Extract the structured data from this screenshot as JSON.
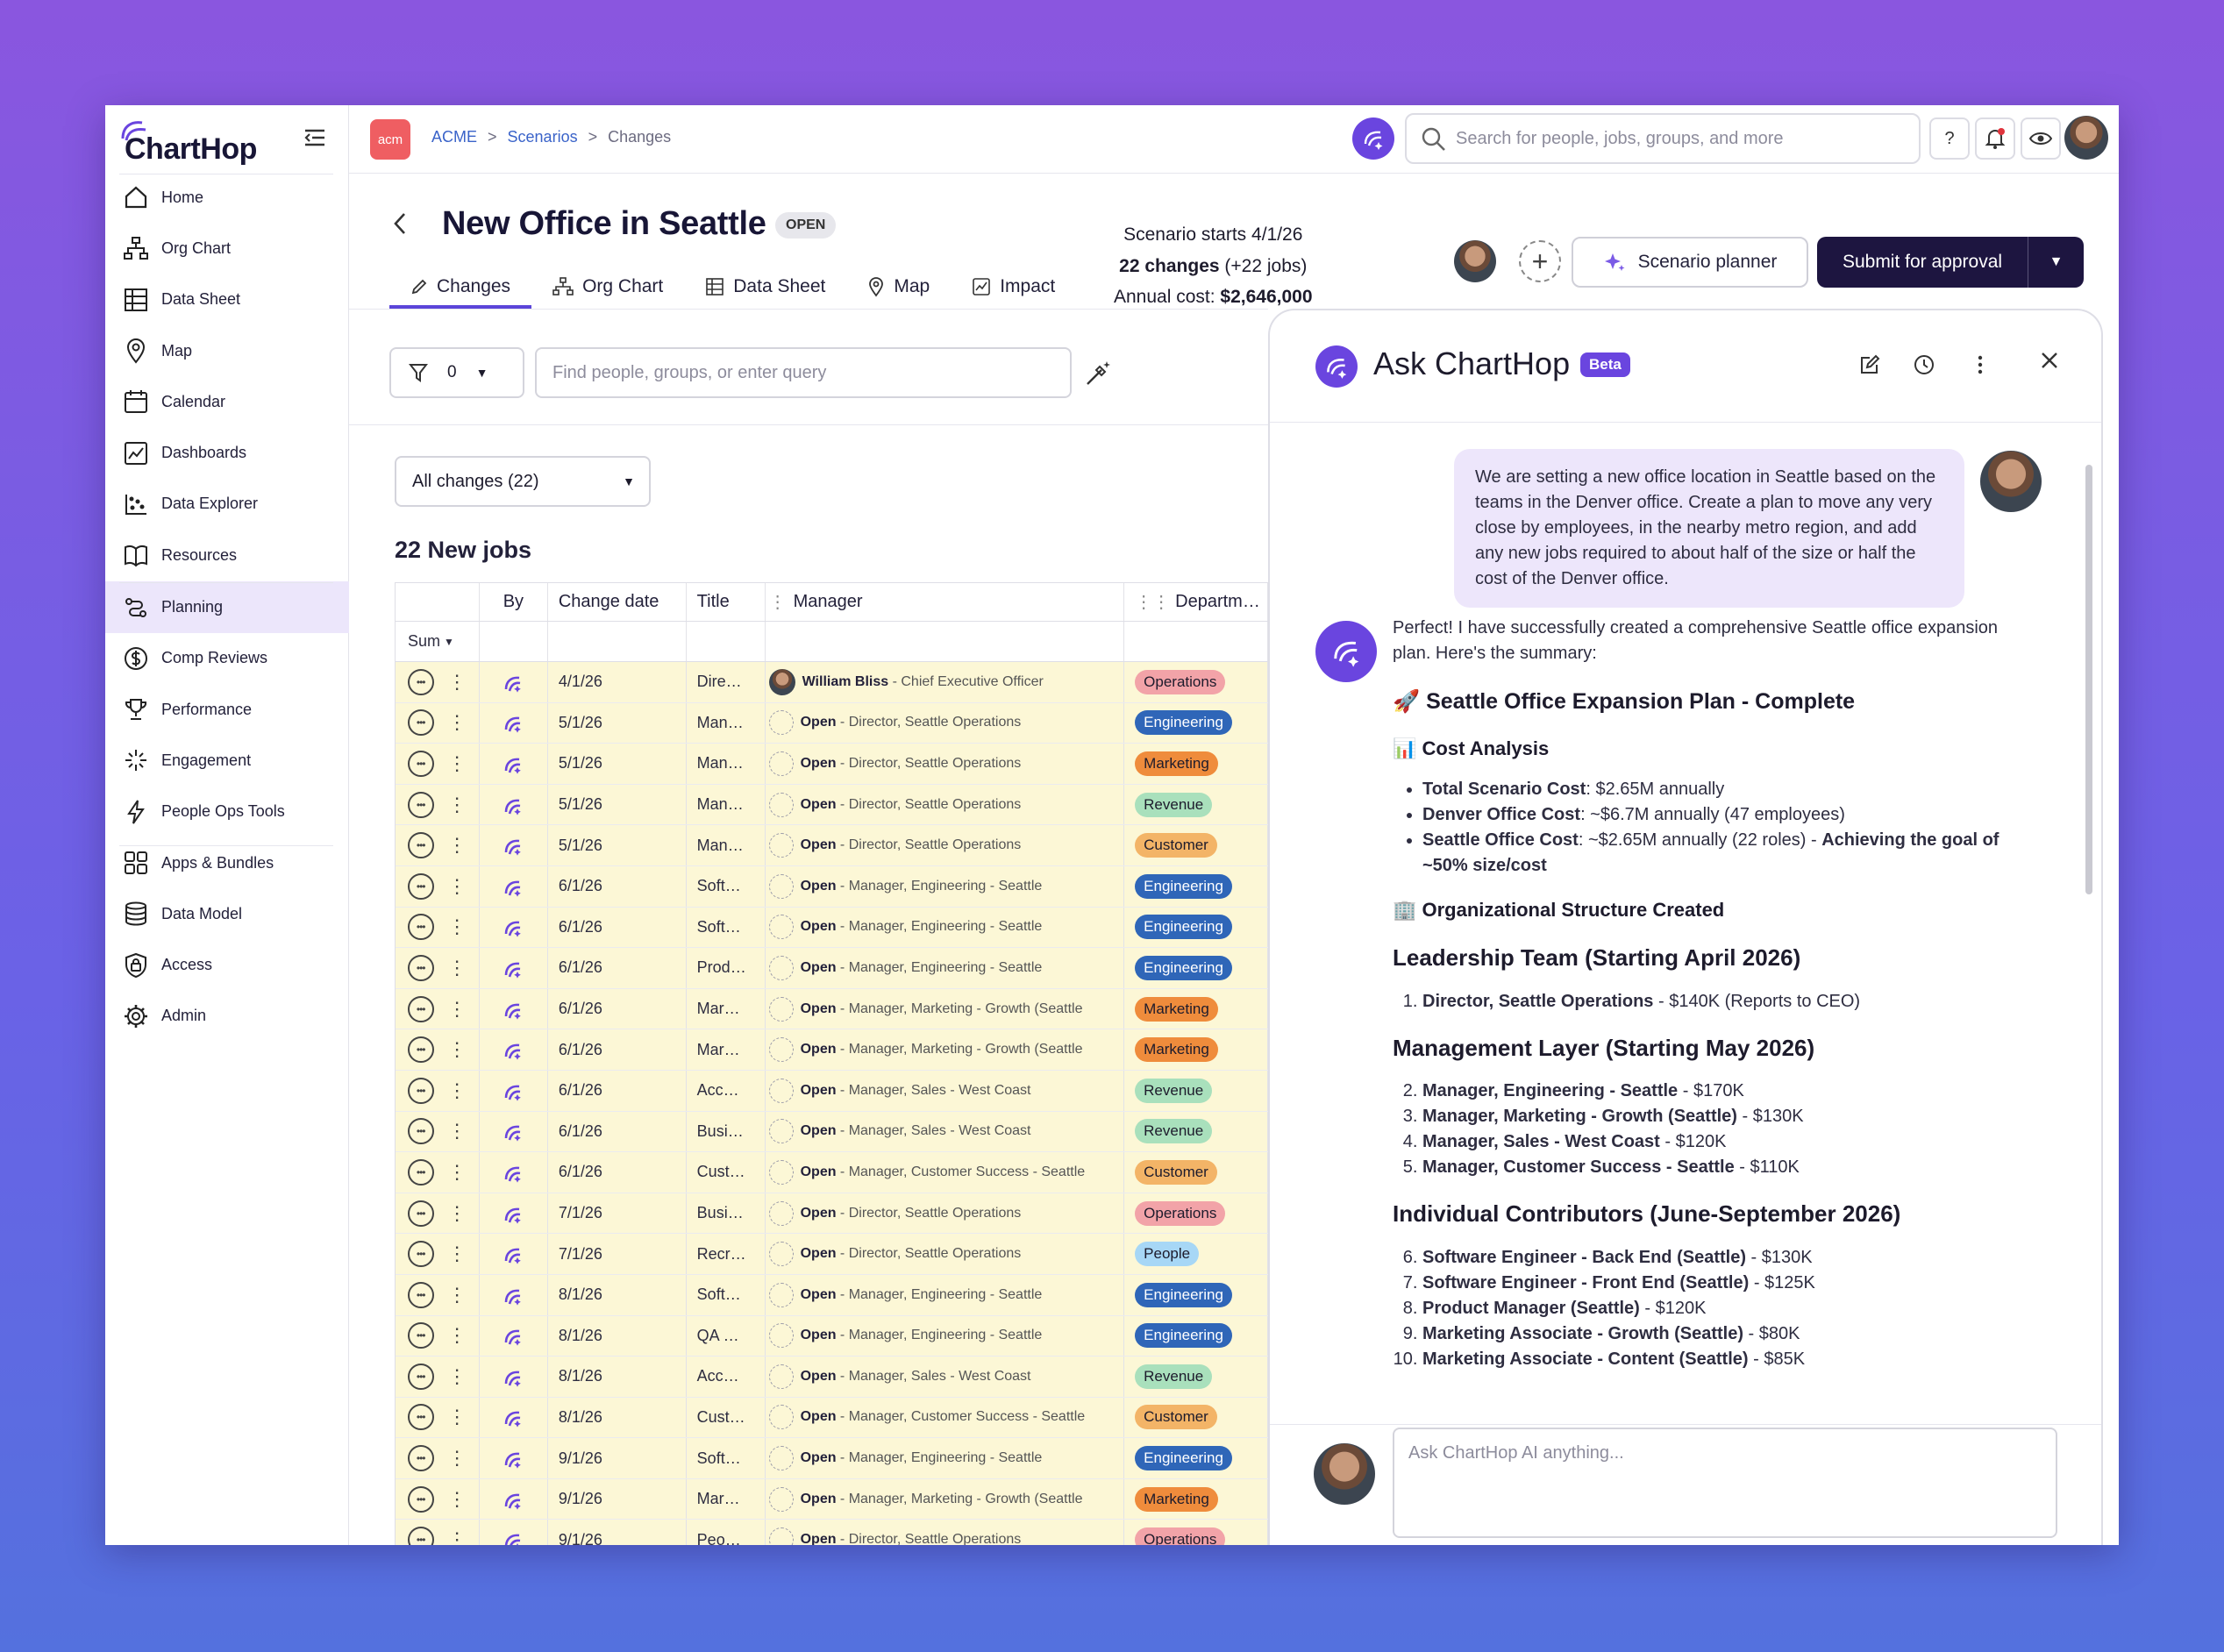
{
  "app": {
    "logo_text": "ChartHop"
  },
  "sidebar": {
    "items": [
      {
        "label": "Home",
        "icon": "home-icon"
      },
      {
        "label": "Org Chart",
        "icon": "org-chart-icon"
      },
      {
        "label": "Data Sheet",
        "icon": "data-sheet-icon"
      },
      {
        "label": "Map",
        "icon": "map-pin-icon"
      },
      {
        "label": "Calendar",
        "icon": "calendar-icon"
      },
      {
        "label": "Dashboards",
        "icon": "dashboard-icon"
      },
      {
        "label": "Data Explorer",
        "icon": "data-explorer-icon"
      },
      {
        "label": "Resources",
        "icon": "book-icon"
      },
      {
        "label": "Planning",
        "icon": "planning-icon",
        "active": true
      },
      {
        "label": "Comp Reviews",
        "icon": "dollar-icon"
      },
      {
        "label": "Performance",
        "icon": "trophy-icon"
      },
      {
        "label": "Engagement",
        "icon": "sparkle-icon"
      },
      {
        "label": "People Ops Tools",
        "icon": "lightning-icon"
      },
      {
        "label": "Apps & Bundles",
        "icon": "apps-icon"
      },
      {
        "label": "Data Model",
        "icon": "database-icon"
      },
      {
        "label": "Access",
        "icon": "lock-shield-icon"
      },
      {
        "label": "Admin",
        "icon": "gear-icon"
      }
    ]
  },
  "topbar": {
    "org_badge": "acm",
    "breadcrumb": [
      "ACME",
      "Scenarios",
      "Changes"
    ],
    "search_placeholder": "Search for people, jobs, groups, and more",
    "help_label": "?"
  },
  "page": {
    "title": "New Office in Seattle",
    "status": "OPEN",
    "tabs": [
      "Changes",
      "Org Chart",
      "Data Sheet",
      "Map",
      "Impact"
    ],
    "scenario_start": "Scenario starts 4/1/26",
    "changes_count": "22 changes",
    "changes_detail": "(+22 jobs)",
    "annual_cost_label": "Annual cost:",
    "annual_cost_value": "$2,646,000",
    "scenario_planner_label": "Scenario planner",
    "submit_label": "Submit for approval",
    "filter_count": "0",
    "query_placeholder": "Find people, groups, or enter query",
    "changes_filter": "All changes (22)",
    "section_title": "22 New jobs"
  },
  "table": {
    "headers": [
      "By",
      "Change date",
      "Title",
      "Manager",
      "Departm…"
    ],
    "sum_label": "Sum",
    "rows": [
      {
        "date": "4/1/26",
        "title": "Dire…",
        "mgr_name": "William Bliss",
        "mgr_role": " - Chief Executive Officer",
        "dept": "Operations",
        "photo": true
      },
      {
        "date": "5/1/26",
        "title": "Man…",
        "mgr_name": "Open",
        "mgr_role": " - Director, Seattle Operations",
        "dept": "Engineering"
      },
      {
        "date": "5/1/26",
        "title": "Man…",
        "mgr_name": "Open",
        "mgr_role": " - Director, Seattle Operations",
        "dept": "Marketing"
      },
      {
        "date": "5/1/26",
        "title": "Man…",
        "mgr_name": "Open",
        "mgr_role": " - Director, Seattle Operations",
        "dept": "Revenue"
      },
      {
        "date": "5/1/26",
        "title": "Man…",
        "mgr_name": "Open",
        "mgr_role": " - Director, Seattle Operations",
        "dept": "Customer"
      },
      {
        "date": "6/1/26",
        "title": "Soft…",
        "mgr_name": "Open",
        "mgr_role": " - Manager, Engineering - Seattle",
        "dept": "Engineering"
      },
      {
        "date": "6/1/26",
        "title": "Soft…",
        "mgr_name": "Open",
        "mgr_role": " - Manager, Engineering - Seattle",
        "dept": "Engineering"
      },
      {
        "date": "6/1/26",
        "title": "Prod…",
        "mgr_name": "Open",
        "mgr_role": " - Manager, Engineering - Seattle",
        "dept": "Engineering"
      },
      {
        "date": "6/1/26",
        "title": "Mar…",
        "mgr_name": "Open",
        "mgr_role": " - Manager, Marketing - Growth (Seattle",
        "dept": "Marketing"
      },
      {
        "date": "6/1/26",
        "title": "Mar…",
        "mgr_name": "Open",
        "mgr_role": " - Manager, Marketing - Growth (Seattle",
        "dept": "Marketing"
      },
      {
        "date": "6/1/26",
        "title": "Acc…",
        "mgr_name": "Open",
        "mgr_role": " - Manager, Sales - West Coast",
        "dept": "Revenue"
      },
      {
        "date": "6/1/26",
        "title": "Busi…",
        "mgr_name": "Open",
        "mgr_role": " - Manager, Sales - West Coast",
        "dept": "Revenue"
      },
      {
        "date": "6/1/26",
        "title": "Cust…",
        "mgr_name": "Open",
        "mgr_role": " - Manager, Customer Success - Seattle",
        "dept": "Customer"
      },
      {
        "date": "7/1/26",
        "title": "Busi…",
        "mgr_name": "Open",
        "mgr_role": " - Director, Seattle Operations",
        "dept": "Operations"
      },
      {
        "date": "7/1/26",
        "title": "Recr…",
        "mgr_name": "Open",
        "mgr_role": " - Director, Seattle Operations",
        "dept": "People"
      },
      {
        "date": "8/1/26",
        "title": "Soft…",
        "mgr_name": "Open",
        "mgr_role": " - Manager, Engineering - Seattle",
        "dept": "Engineering"
      },
      {
        "date": "8/1/26",
        "title": "QA …",
        "mgr_name": "Open",
        "mgr_role": " - Manager, Engineering - Seattle",
        "dept": "Engineering"
      },
      {
        "date": "8/1/26",
        "title": "Acc…",
        "mgr_name": "Open",
        "mgr_role": " - Manager, Sales - West Coast",
        "dept": "Revenue"
      },
      {
        "date": "8/1/26",
        "title": "Cust…",
        "mgr_name": "Open",
        "mgr_role": " - Manager, Customer Success - Seattle",
        "dept": "Customer"
      },
      {
        "date": "9/1/26",
        "title": "Soft…",
        "mgr_name": "Open",
        "mgr_role": " - Manager, Engineering - Seattle",
        "dept": "Engineering"
      },
      {
        "date": "9/1/26",
        "title": "Mar…",
        "mgr_name": "Open",
        "mgr_role": " - Manager, Marketing - Growth (Seattle",
        "dept": "Marketing"
      },
      {
        "date": "9/1/26",
        "title": "Peo…",
        "mgr_name": "Open",
        "mgr_role": " - Director, Seattle Operations",
        "dept": "Operations"
      }
    ]
  },
  "dept_colors": {
    "Operations": "#f2a3a8",
    "Engineering": "#2f66b8",
    "Marketing": "#ef8c3c",
    "Revenue": "#a9e0bc",
    "Customer": "#f3b467",
    "People": "#a7d7f6"
  },
  "assistant": {
    "title": "Ask ChartHop",
    "beta": "Beta",
    "user_message": "We are setting a new office location in Seattle based on the teams in the Denver office. Create a plan to move any very close by employees, in the nearby metro region, and add any new jobs required to about half of the size or half the cost of the Denver office.",
    "intro": "Perfect! I have successfully created a comprehensive Seattle office expansion plan. Here's the summary:",
    "plan_title": "🚀 Seattle Office Expansion Plan - Complete",
    "cost_title": "📊 Cost Analysis",
    "cost_items": [
      {
        "b": "Total Scenario Cost",
        "t": ": $2.65M annually",
        "b2": ""
      },
      {
        "b": "Denver Office Cost",
        "t": ": ~$6.7M annually (47 employees)",
        "b2": ""
      },
      {
        "b": "Seattle Office Cost",
        "t": ": ~$2.65M annually (22 roles) - ",
        "b2": "Achieving the goal of ~50% size/cost"
      }
    ],
    "org_title": "🏢 Organizational Structure Created",
    "leadership_title": "Leadership Team (Starting April 2026)",
    "leadership_items": [
      {
        "b": "Director, Seattle Operations",
        "t": " - $140K (Reports to CEO)"
      }
    ],
    "management_title": "Management Layer (Starting May 2026)",
    "management_items": [
      {
        "b": "Manager, Engineering - Seattle",
        "t": " - $170K"
      },
      {
        "b": "Manager, Marketing - Growth (Seattle)",
        "t": " - $130K"
      },
      {
        "b": "Manager, Sales - West Coast",
        "t": " - $120K"
      },
      {
        "b": "Manager, Customer Success - Seattle",
        "t": " - $110K"
      }
    ],
    "ic_title": "Individual Contributors (June-September 2026)",
    "ic_items": [
      {
        "b": "Software Engineer - Back End (Seattle)",
        "t": " - $130K"
      },
      {
        "b": "Software Engineer - Front End (Seattle)",
        "t": " - $125K"
      },
      {
        "b": "Product Manager (Seattle)",
        "t": " - $120K"
      },
      {
        "b": "Marketing Associate - Growth (Seattle)",
        "t": " - $80K"
      },
      {
        "b": "Marketing Associate - Content (Seattle)",
        "t": " - $85K"
      }
    ],
    "input_placeholder": "Ask ChartHop AI anything..."
  }
}
